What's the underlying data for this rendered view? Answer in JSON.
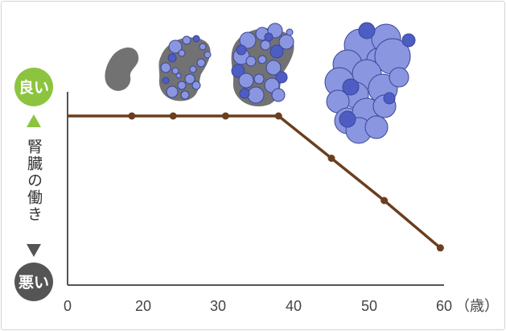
{
  "chart_data": {
    "type": "line",
    "title": "",
    "xlabel": "",
    "ylabel": "腎臓の働き",
    "x_unit": "（歳）",
    "y_top_label": "良い",
    "y_bottom_label": "悪い",
    "x_ticks": [
      "0",
      "20",
      "30",
      "40",
      "50",
      "60"
    ],
    "xlim": [
      0,
      60
    ],
    "ylim": [
      0,
      100
    ],
    "grid": false,
    "series": [
      {
        "name": "",
        "x": [
          0,
          17,
          24,
          31,
          38,
          45,
          52,
          59.5
        ],
        "y": [
          100,
          100,
          100,
          100,
          100,
          75,
          50,
          22
        ]
      }
    ]
  },
  "colors": {
    "line": "#6b3e1f",
    "badge_good": "#8cc43f",
    "badge_bad": "#555555",
    "kidney": "#727272",
    "cyst_light": "#8a96e0",
    "cyst_dark": "#4e5dc4",
    "cyst_edge": "#3a4699",
    "arrow": "#555555"
  },
  "illustrations": [
    {
      "name": "kidney-healthy-icon",
      "stage": "normal"
    },
    {
      "name": "kidney-small-cysts-icon",
      "stage": "early"
    },
    {
      "name": "kidney-medium-cysts-icon",
      "stage": "progressing"
    },
    {
      "name": "kidney-large-cysts-icon",
      "stage": "advanced"
    }
  ]
}
